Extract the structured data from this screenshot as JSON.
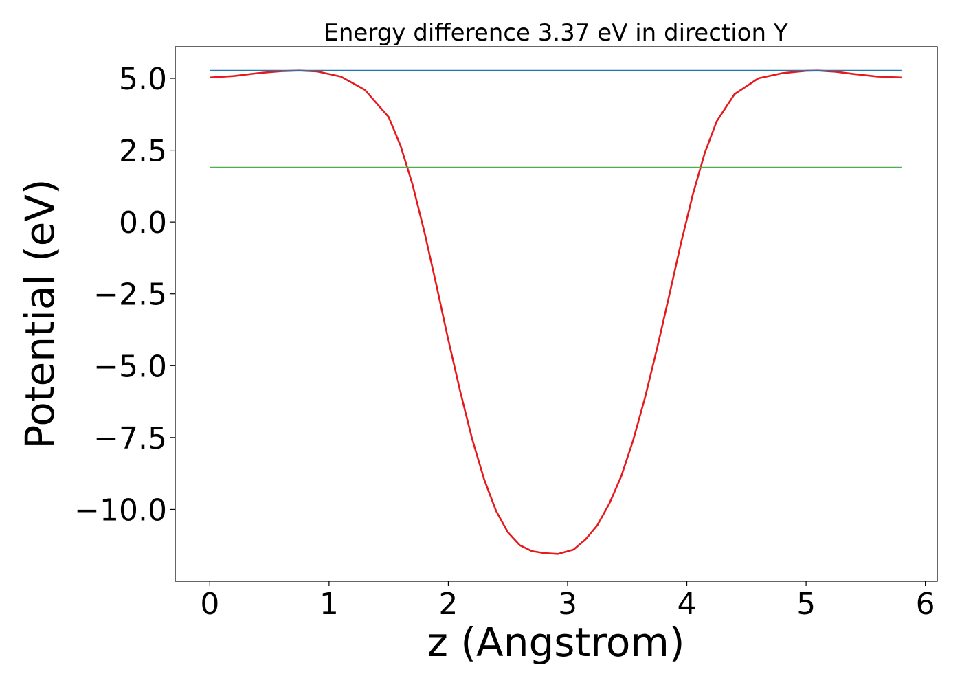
{
  "chart_data": {
    "type": "line",
    "title": "Energy difference 3.37 eV in direction Y",
    "xlabel": "z (Angstrom)",
    "ylabel": "Potential (eV)",
    "xlim": [
      -0.29,
      6.1
    ],
    "ylim": [
      -12.5,
      6.1
    ],
    "xticks": [
      0,
      1,
      2,
      3,
      4,
      5,
      6
    ],
    "xtick_labels": [
      "0",
      "1",
      "2",
      "3",
      "4",
      "5",
      "6"
    ],
    "yticks": [
      5.0,
      2.5,
      0.0,
      -2.5,
      -5.0,
      -7.5,
      -10.0
    ],
    "ytick_labels": [
      "5.0",
      "2.5",
      "0.0",
      "−2.5",
      "−5.0",
      "−7.5",
      "−10.0"
    ],
    "grid": false,
    "legend": "none",
    "series": [
      {
        "color": "#e41a1c",
        "x": [
          0.0,
          0.2,
          0.4,
          0.6,
          0.75,
          0.9,
          1.1,
          1.3,
          1.5,
          1.6,
          1.7,
          1.8,
          1.9,
          2.0,
          2.1,
          2.2,
          2.3,
          2.4,
          2.5,
          2.6,
          2.7,
          2.8,
          2.92,
          3.05,
          3.15,
          3.25,
          3.35,
          3.45,
          3.55,
          3.65,
          3.75,
          3.85,
          3.95,
          4.05,
          4.15,
          4.25,
          4.4,
          4.6,
          4.8,
          5.0,
          5.1,
          5.25,
          5.4,
          5.6,
          5.8
        ],
        "y": [
          5.03,
          5.08,
          5.18,
          5.25,
          5.27,
          5.24,
          5.06,
          4.6,
          3.65,
          2.65,
          1.3,
          -0.35,
          -2.2,
          -4.1,
          -5.9,
          -7.55,
          -8.95,
          -10.05,
          -10.8,
          -11.25,
          -11.45,
          -11.52,
          -11.55,
          -11.4,
          -11.05,
          -10.55,
          -9.8,
          -8.85,
          -7.6,
          -6.1,
          -4.4,
          -2.6,
          -0.75,
          0.95,
          2.4,
          3.5,
          4.45,
          5.0,
          5.18,
          5.26,
          5.27,
          5.23,
          5.15,
          5.06,
          5.03
        ]
      },
      {
        "color": "#1f77b4",
        "x": [
          0.0,
          5.8
        ],
        "y": [
          5.27,
          5.27
        ]
      },
      {
        "color": "#4daf4a",
        "x": [
          0.0,
          5.8
        ],
        "y": [
          1.9,
          1.9
        ]
      }
    ]
  }
}
